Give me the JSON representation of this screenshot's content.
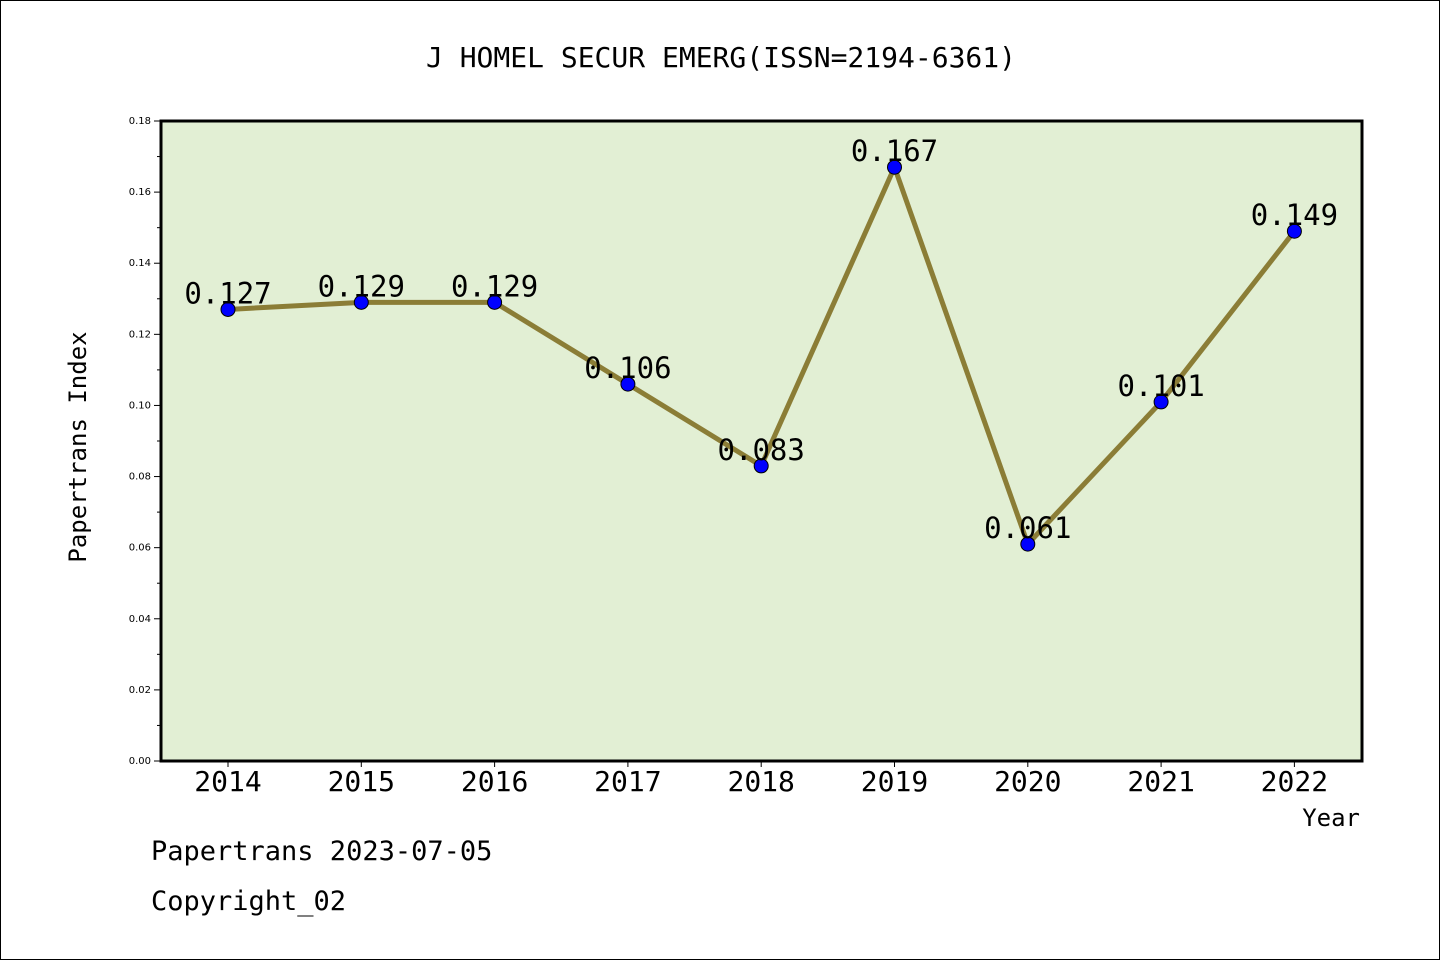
{
  "chart_data": {
    "type": "line",
    "title": "J HOMEL SECUR EMERG(ISSN=2194-6361)",
    "xlabel": "Year",
    "ylabel": "Papertrans Index",
    "categories": [
      "2014",
      "2015",
      "2016",
      "2017",
      "2018",
      "2019",
      "2020",
      "2021",
      "2022"
    ],
    "values": [
      0.127,
      0.129,
      0.129,
      0.106,
      0.083,
      0.167,
      0.061,
      0.101,
      0.149
    ],
    "value_labels": [
      "0.127",
      "0.129",
      "0.129",
      "0.106",
      "0.083",
      "0.167",
      "0.061",
      "0.101",
      "0.149"
    ],
    "ylim": [
      0,
      0.18
    ],
    "yticks": [
      "0.00",
      "0.02",
      "0.04",
      "0.06",
      "0.08",
      "0.10",
      "0.12",
      "0.14",
      "0.16",
      "0.18"
    ],
    "grid": false,
    "colors": {
      "plot_background": "#e2efd4",
      "line": "#8b7d36",
      "marker": "#0000ff"
    }
  },
  "footer": {
    "line1": "Papertrans 2023-07-05",
    "line2": "Copyright_02"
  }
}
